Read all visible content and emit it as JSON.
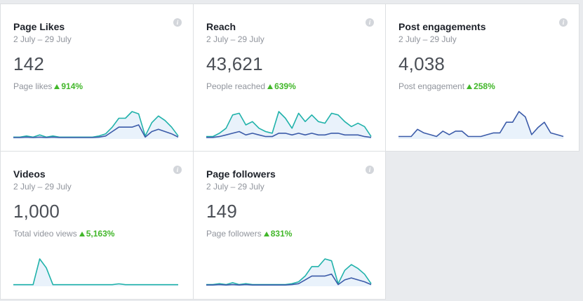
{
  "colors": {
    "accent_line": "#20b2aa",
    "secondary_line": "#3b5ba9",
    "trend_up": "#42b72a"
  },
  "cards": [
    {
      "title": "Page Likes",
      "range": "2 July – 29 July",
      "value": "142",
      "metric_label": "Page likes",
      "change": "914%"
    },
    {
      "title": "Reach",
      "range": "2 July – 29 July",
      "value": "43,621",
      "metric_label": "People reached",
      "change": "639%"
    },
    {
      "title": "Post engagements",
      "range": "2 July – 29 July",
      "value": "4,038",
      "metric_label": "Post engagement",
      "change": "258%"
    },
    {
      "title": "Videos",
      "range": "2 July – 29 July",
      "value": "1,000",
      "metric_label": "Total video views",
      "change": "5,163%"
    },
    {
      "title": "Page followers",
      "range": "2 July – 29 July",
      "value": "149",
      "metric_label": "Page followers",
      "change": "831%"
    }
  ],
  "info_glyph": "i",
  "chart_data": [
    {
      "type": "line",
      "series": [
        {
          "values": [
            0.5,
            0.5,
            1,
            0.5,
            1.5,
            0.5,
            1,
            0.5,
            0.5,
            0.5,
            0.5,
            0.5,
            0.5,
            1,
            2,
            5,
            9,
            9,
            12,
            11,
            1,
            7,
            10,
            8,
            5,
            1
          ]
        },
        {
          "values": [
            0.3,
            0.3,
            0.5,
            0.3,
            0.5,
            0.3,
            0.5,
            0.3,
            0.3,
            0.3,
            0.3,
            0.3,
            0.3,
            0.5,
            1,
            3,
            5,
            5,
            5,
            6,
            0.5,
            3,
            4,
            3,
            2,
            0.5
          ]
        }
      ]
    },
    {
      "type": "line",
      "series": [
        {
          "values": [
            1,
            1,
            3,
            6,
            14,
            15,
            8,
            10,
            6,
            4,
            3,
            16,
            12,
            6,
            15,
            10,
            14,
            10,
            9,
            15,
            14,
            10,
            7,
            9,
            7,
            1
          ]
        },
        {
          "values": [
            0.5,
            0.5,
            1,
            2,
            3,
            4,
            2,
            3,
            2,
            1,
            1,
            3,
            3,
            2,
            3,
            2,
            3,
            2,
            2,
            3,
            3,
            2,
            2,
            2,
            1,
            0.5
          ]
        }
      ]
    },
    {
      "type": "line",
      "series": [
        {
          "values": [
            1,
            1,
            1,
            5,
            3,
            2,
            1,
            4,
            2,
            4,
            4,
            1,
            1,
            1,
            2,
            3,
            3,
            9,
            9,
            15,
            12,
            2,
            6,
            9,
            3,
            2,
            1
          ]
        }
      ]
    },
    {
      "type": "line",
      "series": [
        {
          "values": [
            0.5,
            0.5,
            0.5,
            0.5,
            15,
            10,
            0.5,
            0.5,
            0.5,
            0.5,
            0.5,
            0.5,
            0.5,
            0.5,
            0.5,
            0.5,
            1,
            0.5,
            0.5,
            0.5,
            0.5,
            0.5,
            0.5,
            0.5,
            0.5,
            0.5
          ]
        }
      ]
    },
    {
      "type": "line",
      "series": [
        {
          "values": [
            0.5,
            0.5,
            1,
            0.5,
            1.5,
            0.5,
            1,
            0.5,
            0.5,
            0.5,
            0.5,
            0.5,
            0.5,
            1,
            2,
            5,
            10,
            10,
            14,
            13,
            1,
            8,
            11,
            9,
            6,
            1
          ]
        },
        {
          "values": [
            0.3,
            0.3,
            0.5,
            0.3,
            0.5,
            0.3,
            0.5,
            0.3,
            0.3,
            0.3,
            0.3,
            0.3,
            0.3,
            0.5,
            1,
            3,
            5,
            5,
            5,
            6,
            0.5,
            3,
            4,
            3,
            2,
            0.5
          ]
        }
      ]
    }
  ]
}
